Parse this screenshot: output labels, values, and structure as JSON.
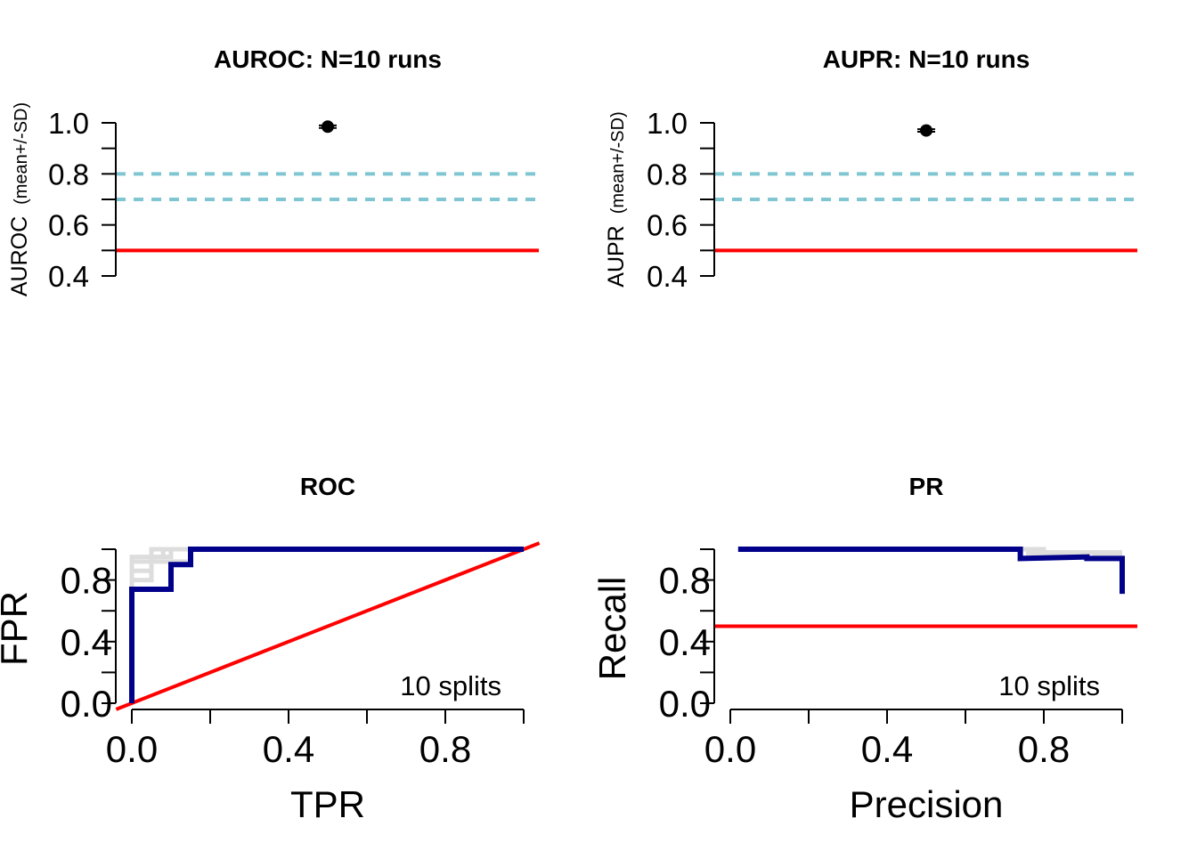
{
  "chart_data": [
    {
      "type": "scatter",
      "title": "AUROC: N=10 runs",
      "ylabel": "AUROC",
      "ylabel_small": "(mean+/-SD)",
      "ylim": [
        0.4,
        1.0
      ],
      "yticks": [
        "0.4",
        "0.6",
        "0.8",
        "1.0"
      ],
      "points": [
        {
          "y": 0.985,
          "sd": 0.005
        }
      ],
      "reference_lines": [
        {
          "y": 0.8,
          "style": "dotted",
          "color": "#7fc6d2"
        },
        {
          "y": 0.7,
          "style": "dotted",
          "color": "#7fc6d2"
        },
        {
          "y": 0.5,
          "style": "solid",
          "color": "#ff0000"
        }
      ]
    },
    {
      "type": "scatter",
      "title": "AUPR: N=10 runs",
      "ylabel": "AUPR",
      "ylabel_small": "(mean+/-SD)",
      "ylim": [
        0.4,
        1.0
      ],
      "yticks": [
        "0.4",
        "0.6",
        "0.8",
        "1.0"
      ],
      "points": [
        {
          "y": 0.97,
          "sd": 0.005
        }
      ],
      "reference_lines": [
        {
          "y": 0.8,
          "style": "dotted",
          "color": "#7fc6d2"
        },
        {
          "y": 0.7,
          "style": "dotted",
          "color": "#7fc6d2"
        },
        {
          "y": 0.5,
          "style": "solid",
          "color": "#ff0000"
        }
      ]
    },
    {
      "type": "line",
      "title": "ROC",
      "xlabel": "TPR",
      "ylabel": "FPR",
      "xticks": [
        "0.0",
        "0.4",
        "0.8"
      ],
      "yticks": [
        "0.0",
        "0.4",
        "0.8"
      ],
      "annotation": "10 splits",
      "series_colors": {
        "mean": "#00008b",
        "splits": "#dddddd",
        "baseline": "#ff0000"
      },
      "mean_curve": {
        "x": [
          0,
          0,
          0.1,
          0.1,
          0.15,
          0.15,
          1.0
        ],
        "y": [
          0,
          0.74,
          0.74,
          0.9,
          0.9,
          1.0,
          1.0
        ]
      },
      "split_curves": [
        {
          "x": [
            0,
            0,
            0.05,
            0.05,
            1.0
          ],
          "y": [
            0,
            0.92,
            0.92,
            1.0,
            1.0
          ]
        },
        {
          "x": [
            0,
            0,
            0.05,
            0.05,
            0.08,
            0.08,
            1.0
          ],
          "y": [
            0,
            0.86,
            0.86,
            0.95,
            0.95,
            1.0,
            1.0
          ]
        },
        {
          "x": [
            0,
            0,
            0.1,
            0.1,
            1.0
          ],
          "y": [
            0,
            0.95,
            0.95,
            1.0,
            1.0
          ]
        },
        {
          "x": [
            0,
            0,
            0.05,
            0.05,
            0.15,
            0.15,
            1.0
          ],
          "y": [
            0,
            0.8,
            0.8,
            0.92,
            0.92,
            1.0,
            1.0
          ]
        }
      ],
      "baseline": {
        "x": [
          -0.04,
          1.04
        ],
        "y": [
          -0.04,
          1.04
        ]
      }
    },
    {
      "type": "line",
      "title": "PR",
      "xlabel": "Precision",
      "ylabel": "Recall",
      "xticks": [
        "0.0",
        "0.4",
        "0.8"
      ],
      "yticks": [
        "0.0",
        "0.4",
        "0.8"
      ],
      "annotation": "10 splits",
      "series_colors": {
        "mean": "#00008b",
        "splits": "#dddddd",
        "baseline": "#ff0000"
      },
      "mean_curve": {
        "x": [
          0.02,
          0.74,
          0.74,
          0.91,
          0.91,
          1.0,
          1.0
        ],
        "y": [
          1.0,
          1.0,
          0.94,
          0.95,
          0.94,
          0.94,
          0.71
        ]
      },
      "split_curves": [
        {
          "x": [
            0.02,
            0.76,
            0.76,
            0.93,
            0.93,
            1.0
          ],
          "y": [
            1.0,
            1.0,
            0.97,
            0.98,
            0.97,
            0.97
          ]
        },
        {
          "x": [
            0.02,
            0.8,
            0.8,
            1.0
          ],
          "y": [
            1.0,
            1.0,
            0.98,
            0.98
          ]
        }
      ],
      "baseline": {
        "y": 0.5
      }
    }
  ]
}
